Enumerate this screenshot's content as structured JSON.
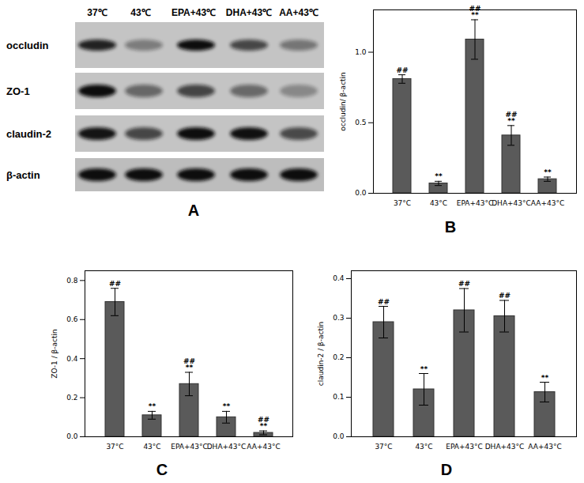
{
  "blot": {
    "title": "A",
    "lanes": [
      "37℃",
      "43℃",
      "EPA+43℃",
      "DHA+43℃",
      "AA+43℃"
    ],
    "rows": [
      "occludin",
      "ZO-1",
      "claudin-2",
      "β-actin"
    ]
  },
  "chart_data": [
    {
      "type": "bar",
      "title": "B",
      "categories": [
        "37°C",
        "43°C",
        "EPA+43°C",
        "DHA+43°C",
        "AA+43°C"
      ],
      "values": [
        0.81,
        0.07,
        1.09,
        0.41,
        0.1
      ],
      "errors": [
        0.03,
        0.015,
        0.14,
        0.07,
        0.015
      ],
      "annotations": [
        [
          "##"
        ],
        [
          "**"
        ],
        [
          "##",
          "**"
        ],
        [
          "##",
          "**"
        ],
        [
          "**"
        ]
      ],
      "y_label": "occludin/ β-actin",
      "color": "#5a5a5a",
      "ylim": [
        0,
        1.3
      ],
      "yticks": [
        {
          "value": 0,
          "label": "0.0"
        },
        {
          "value": 0.5,
          "label": "0.5"
        },
        {
          "value": 1,
          "label": "1.0"
        }
      ]
    },
    {
      "type": "bar",
      "title": "C",
      "categories": [
        "37°C",
        "43°C",
        "EPA+43°C",
        "DHA+43°C",
        "AA+43°C"
      ],
      "values": [
        0.69,
        0.11,
        0.27,
        0.1,
        0.02
      ],
      "errors": [
        0.07,
        0.02,
        0.06,
        0.03,
        0.01
      ],
      "annotations": [
        [
          "##"
        ],
        [
          "**"
        ],
        [
          "##",
          "**"
        ],
        [
          "**"
        ],
        [
          "##",
          "**"
        ]
      ],
      "y_label": "ZO-1 / β-actin",
      "color": "#5a5a5a",
      "ylim": [
        0,
        0.85
      ],
      "yticks": [
        {
          "value": 0,
          "label": "0.0"
        },
        0.2,
        0.4,
        0.6,
        0.8
      ]
    },
    {
      "type": "bar",
      "title": "D",
      "categories": [
        "37°C",
        "43°C",
        "EPA+43°C",
        "DHA+43°C",
        "AA+43°C"
      ],
      "values": [
        0.29,
        0.12,
        0.32,
        0.305,
        0.113
      ],
      "errors": [
        0.04,
        0.04,
        0.055,
        0.04,
        0.025
      ],
      "annotations": [
        [
          "##"
        ],
        [
          "**"
        ],
        [
          "##"
        ],
        [
          "##"
        ],
        [
          "**"
        ]
      ],
      "y_label": "claudin-2 / β-actin",
      "color": "#5a5a5a",
      "ylim": [
        0,
        0.42
      ],
      "yticks": [
        {
          "value": 0,
          "label": "0.0"
        },
        0.1,
        0.2,
        0.3,
        0.4
      ]
    }
  ]
}
